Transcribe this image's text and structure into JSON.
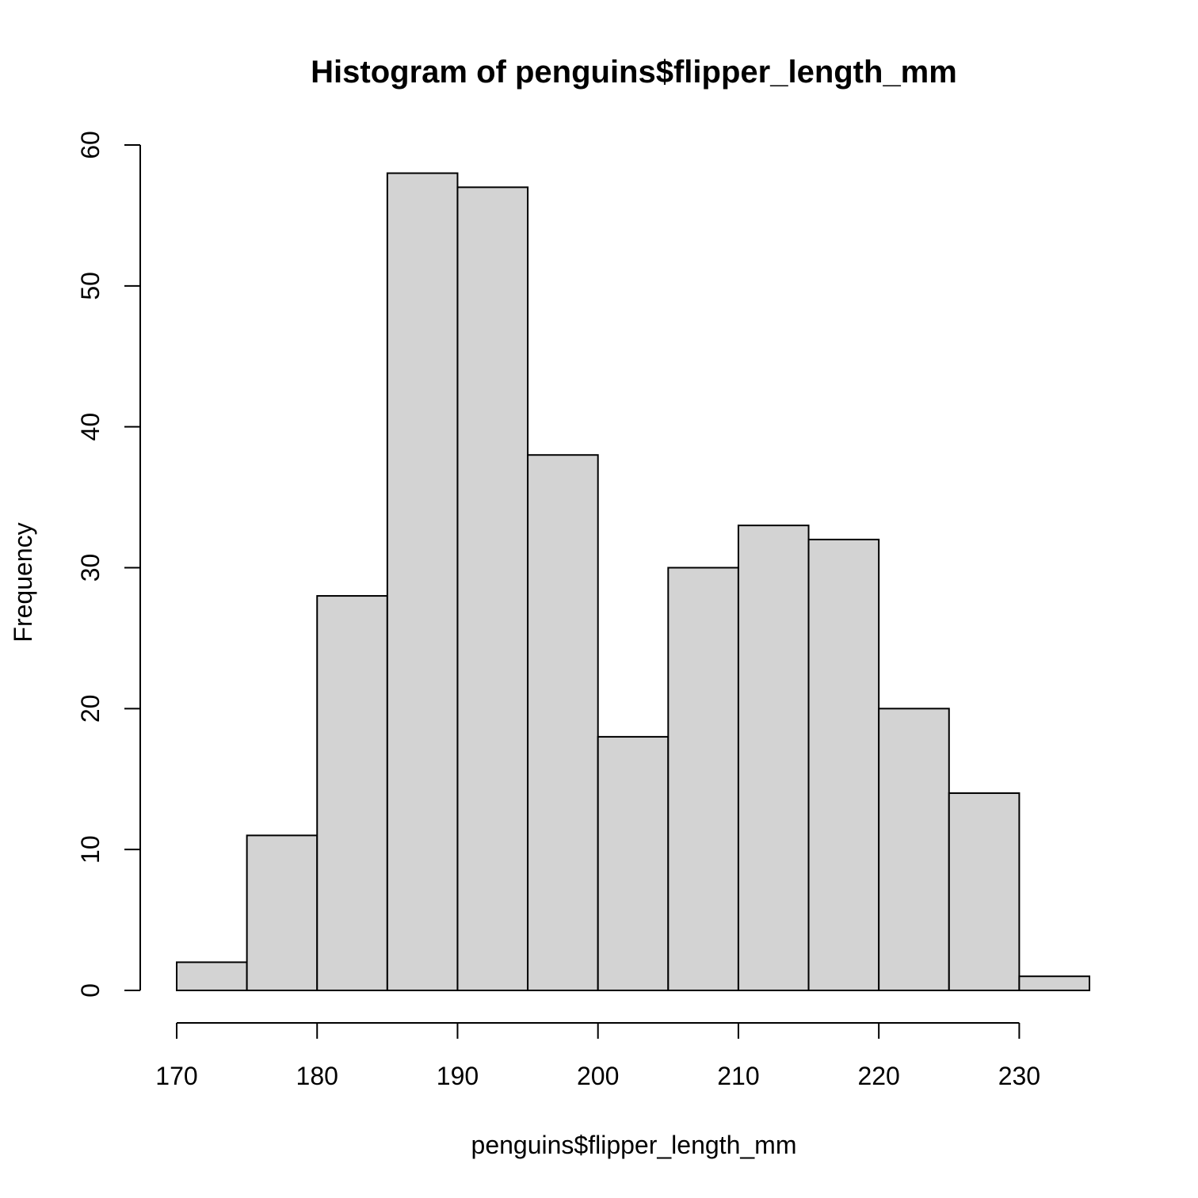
{
  "chart_data": {
    "type": "bar",
    "title": "Histogram of penguins$flipper_length_mm",
    "xlabel": "penguins$flipper_length_mm",
    "ylabel": "Frequency",
    "bins": [
      {
        "from": 170,
        "to": 175,
        "count": 2
      },
      {
        "from": 175,
        "to": 180,
        "count": 11
      },
      {
        "from": 180,
        "to": 185,
        "count": 28
      },
      {
        "from": 185,
        "to": 190,
        "count": 58
      },
      {
        "from": 190,
        "to": 195,
        "count": 57
      },
      {
        "from": 195,
        "to": 200,
        "count": 38
      },
      {
        "from": 200,
        "to": 205,
        "count": 18
      },
      {
        "from": 205,
        "to": 210,
        "count": 30
      },
      {
        "from": 210,
        "to": 215,
        "count": 33
      },
      {
        "from": 215,
        "to": 220,
        "count": 32
      },
      {
        "from": 220,
        "to": 225,
        "count": 20
      },
      {
        "from": 225,
        "to": 230,
        "count": 14
      },
      {
        "from": 230,
        "to": 235,
        "count": 1
      }
    ],
    "xlim": [
      170,
      235
    ],
    "ylim": [
      0,
      60
    ],
    "xticks": [
      170,
      180,
      190,
      200,
      210,
      220,
      230
    ],
    "yticks": [
      0,
      10,
      20,
      30,
      40,
      50,
      60
    ],
    "bar_color": "#d3d3d3",
    "edge_color": "#000000",
    "grid": false,
    "legend": "none"
  }
}
